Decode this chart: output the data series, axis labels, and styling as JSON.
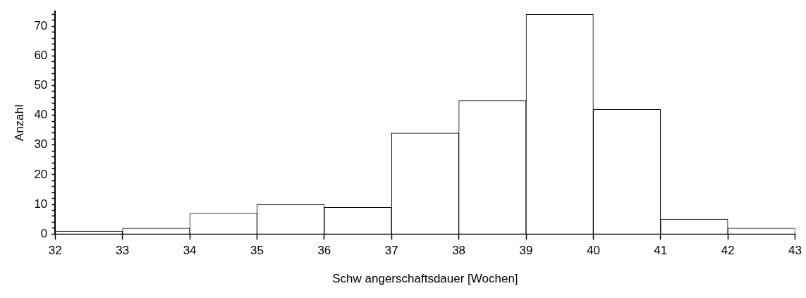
{
  "chart_data": {
    "type": "histogram",
    "xlabel": "Schw angerschaftsdauer [Wochen]",
    "ylabel": "Anzahl",
    "bins": [
      32,
      33,
      34,
      35,
      36,
      37,
      38,
      39,
      40,
      41,
      42,
      43
    ],
    "values": [
      1,
      2,
      7,
      10,
      9,
      34,
      45,
      74,
      42,
      5,
      2
    ],
    "color": "#ffffff",
    "xlim": [
      32,
      43
    ],
    "xticks": [
      32,
      33,
      34,
      35,
      36,
      37,
      38,
      39,
      40,
      41,
      42,
      43
    ],
    "ylim": [
      0,
      75
    ],
    "yticks": [
      0,
      {
        "value": 2,
        "label": null
      },
      {
        "value": 4,
        "label": null
      },
      {
        "value": 6,
        "label": null
      },
      {
        "value": 8,
        "label": null
      },
      10,
      {
        "value": 12,
        "label": null
      },
      {
        "value": 14,
        "label": null
      },
      {
        "value": 16,
        "label": null
      },
      {
        "value": 18,
        "label": null
      },
      20,
      {
        "value": 22,
        "label": null
      },
      {
        "value": 24,
        "label": null
      },
      {
        "value": 26,
        "label": null
      },
      {
        "value": 28,
        "label": null
      },
      30,
      {
        "value": 32,
        "label": null
      },
      {
        "value": 34,
        "label": null
      },
      {
        "value": 36,
        "label": null
      },
      {
        "value": 38,
        "label": null
      },
      40,
      {
        "value": 42,
        "label": null
      },
      {
        "value": 44,
        "label": null
      },
      {
        "value": 46,
        "label": null
      },
      {
        "value": 48,
        "label": null
      },
      50,
      {
        "value": 52,
        "label": null
      },
      {
        "value": 54,
        "label": null
      },
      {
        "value": 56,
        "label": null
      },
      {
        "value": 58,
        "label": null
      },
      60,
      {
        "value": 62,
        "label": null
      },
      {
        "value": 64,
        "label": null
      },
      {
        "value": 66,
        "label": null
      },
      {
        "value": 68,
        "label": null
      },
      70,
      {
        "value": 72,
        "label": null
      },
      {
        "value": 74,
        "label": null
      }
    ],
    "grid": false,
    "legend": false
  }
}
